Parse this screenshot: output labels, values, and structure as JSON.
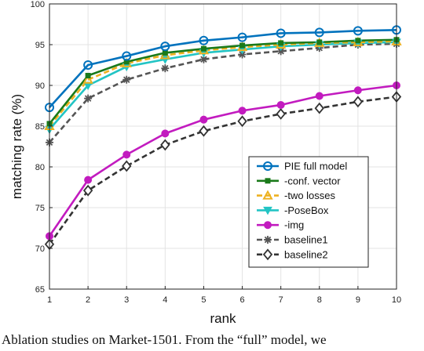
{
  "chart_data": {
    "type": "line",
    "xlabel": "rank",
    "ylabel": "matching rate (%)",
    "x": [
      1,
      2,
      3,
      4,
      5,
      6,
      7,
      8,
      9,
      10
    ],
    "xticks": [
      "1",
      "2",
      "3",
      "4",
      "5",
      "6",
      "7",
      "8",
      "9",
      "10"
    ],
    "xlim": [
      1,
      10
    ],
    "ylim": [
      65,
      100
    ],
    "yticks": [
      "65",
      "70",
      "75",
      "80",
      "85",
      "90",
      "95",
      "100"
    ],
    "grid": true,
    "legend_position": "bottom-right",
    "series": [
      {
        "name": "PIE full model",
        "values": [
          87.3,
          92.5,
          93.6,
          94.8,
          95.5,
          95.9,
          96.4,
          96.5,
          96.7,
          96.8
        ],
        "color": "#0072BD",
        "dash": "solid",
        "marker": "circle-open"
      },
      {
        "name": "-conf. vector",
        "values": [
          85.3,
          91.2,
          92.9,
          94.0,
          94.5,
          94.9,
          95.2,
          95.3,
          95.5,
          95.6
        ],
        "color": "#1a7a1a",
        "dash": "solid",
        "marker": "square-filled"
      },
      {
        "name": "-two losses",
        "values": [
          85.0,
          90.7,
          92.7,
          93.7,
          94.3,
          94.7,
          95.0,
          95.2,
          95.3,
          95.4
        ],
        "color": "#EDB120",
        "dash": "dashed",
        "marker": "triangle-up-open"
      },
      {
        "name": "-PoseBox",
        "values": [
          84.6,
          90.0,
          92.3,
          93.2,
          94.0,
          94.4,
          94.8,
          95.0,
          95.2,
          95.3
        ],
        "color": "#22c4c4",
        "dash": "solid",
        "marker": "triangle-down-filled"
      },
      {
        "name": "-img",
        "values": [
          71.5,
          78.4,
          81.5,
          84.1,
          85.8,
          86.9,
          87.6,
          88.7,
          89.4,
          90.0
        ],
        "color": "#c21bbf",
        "dash": "solid",
        "marker": "circle-filled"
      },
      {
        "name": "baseline1",
        "values": [
          83.0,
          88.4,
          90.7,
          92.1,
          93.2,
          93.8,
          94.2,
          94.6,
          95.0,
          95.1
        ],
        "color": "#555555",
        "dash": "dashed",
        "marker": "asterisk"
      },
      {
        "name": "baseline2",
        "values": [
          70.5,
          77.1,
          80.1,
          82.7,
          84.4,
          85.6,
          86.5,
          87.2,
          88.0,
          88.6
        ],
        "color": "#333333",
        "dash": "dashed",
        "marker": "diamond-open"
      }
    ]
  },
  "caption": "Ablation studies on Market-1501. From the “full” model, we"
}
